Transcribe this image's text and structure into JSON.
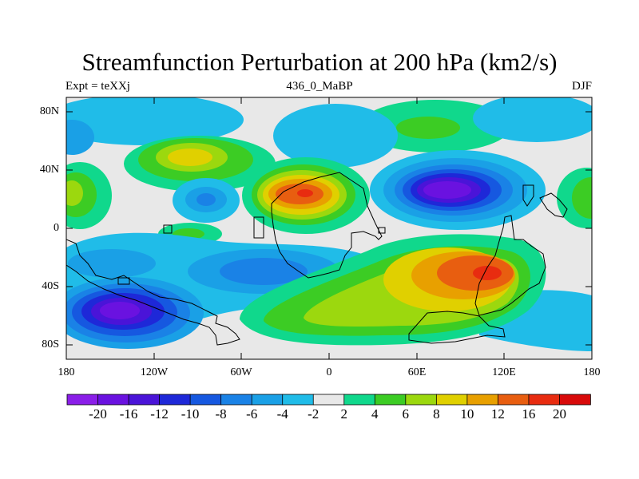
{
  "title": "Streamfunction Perturbation at 200 hPa (km2/s)",
  "subtitle_left": "Expt = teXXj",
  "subtitle_center": "436_0_MaBP",
  "subtitle_right": "DJF",
  "y_axis_labels": [
    "80N",
    "40N",
    "0",
    "40S",
    "80S"
  ],
  "x_axis_labels": [
    "180",
    "120W",
    "60W",
    "0",
    "60E",
    "120E",
    "180"
  ],
  "colorbar": {
    "labels": [
      "-20",
      "-16",
      "-12",
      "-10",
      "-8",
      "-6",
      "-4",
      "-2",
      "2",
      "4",
      "6",
      "8",
      "10",
      "12",
      "16",
      "20"
    ],
    "colors": [
      "#8a1ee8",
      "#6a12e0",
      "#4a14d8",
      "#1e28d8",
      "#1658e0",
      "#1a82e6",
      "#1aa0e6",
      "#20bce8",
      "#e8e8e8",
      "#10d88c",
      "#3ccc24",
      "#9cd80e",
      "#e0d000",
      "#e8a000",
      "#e85e10",
      "#e82c10",
      "#d80a0a"
    ]
  },
  "field_colors": {
    "land_outline": "#000000",
    "background": "#e8e8e8"
  }
}
